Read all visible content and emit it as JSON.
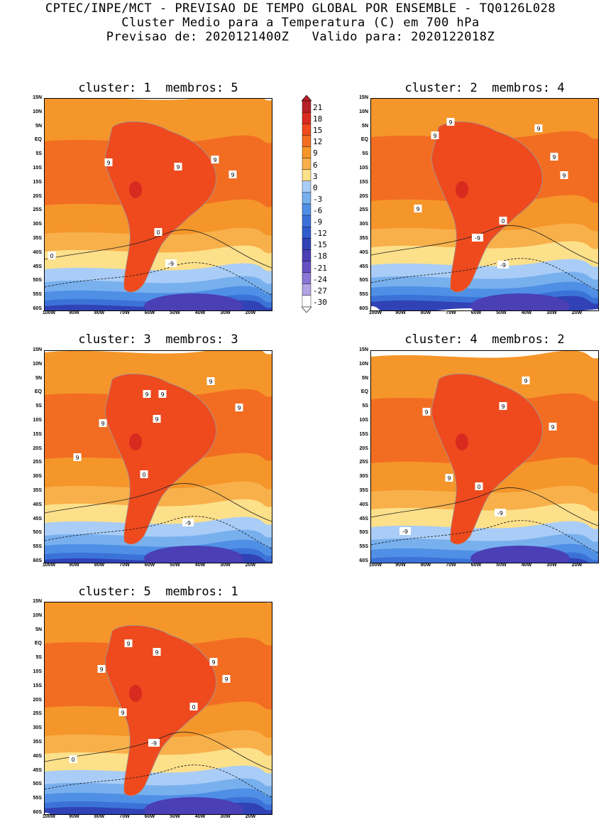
{
  "header": {
    "line1": "CPTEC/INPE/MCT - PREVISAO DE TEMPO GLOBAL POR ENSEMBLE - TQ0126L028",
    "line2": "Cluster Medio para a Temperatura (C) em 700 hPa",
    "line3": "Previsao de: 2020121400Z   Valido para: 2020122018Z"
  },
  "panels": [
    {
      "title": "cluster: 1  membros: 5"
    },
    {
      "title": "cluster: 2  membros: 4"
    },
    {
      "title": "cluster: 3  membros: 3"
    },
    {
      "title": "cluster: 4  membros: 2"
    },
    {
      "title": "cluster: 5  membros: 1"
    }
  ],
  "axes": {
    "lat_labels": [
      "15N",
      "10N",
      "5N",
      "EQ",
      "5S",
      "10S",
      "15S",
      "20S",
      "25S",
      "30S",
      "35S",
      "40S",
      "45S",
      "50S",
      "55S",
      "60S"
    ],
    "lon_labels": [
      "100W",
      "90W",
      "80W",
      "70W",
      "60W",
      "50W",
      "40W",
      "30W",
      "20W"
    ]
  },
  "colorbar": {
    "labels": [
      "21",
      "18",
      "15",
      "12",
      "9",
      "6",
      "3",
      "0",
      "-3",
      "-6",
      "-9",
      "-12",
      "-15",
      "-18",
      "-21",
      "-24",
      "-27",
      "-30"
    ],
    "colors": [
      "#b8202a",
      "#d92a1f",
      "#ee4a1e",
      "#f26d22",
      "#f5962a",
      "#f8b04a",
      "#fde08a",
      "#a9cdf6",
      "#78b0ee",
      "#4f8fe5",
      "#3b72d8",
      "#2f5ccd",
      "#3042b6",
      "#4a3fb5",
      "#6650c2",
      "#8a76d6",
      "#b3a4e5",
      "#ffffff"
    ]
  },
  "contour_labels": {
    "p0": [
      "9",
      "9",
      "9",
      "9",
      "0",
      "0",
      "-9"
    ],
    "p1": [
      "9",
      "9",
      "9",
      "9",
      "9",
      "9",
      "0",
      "-9",
      "-9"
    ],
    "p2": [
      "9",
      "9",
      "9",
      "9",
      "9",
      "9",
      "9",
      "0",
      "-9"
    ],
    "p3": [
      "9",
      "9",
      "9",
      "9",
      "9",
      "0",
      "-9",
      "-9"
    ],
    "p4": [
      "9",
      "9",
      "9",
      "9",
      "9",
      "9",
      "0",
      "0",
      "-9"
    ]
  }
}
